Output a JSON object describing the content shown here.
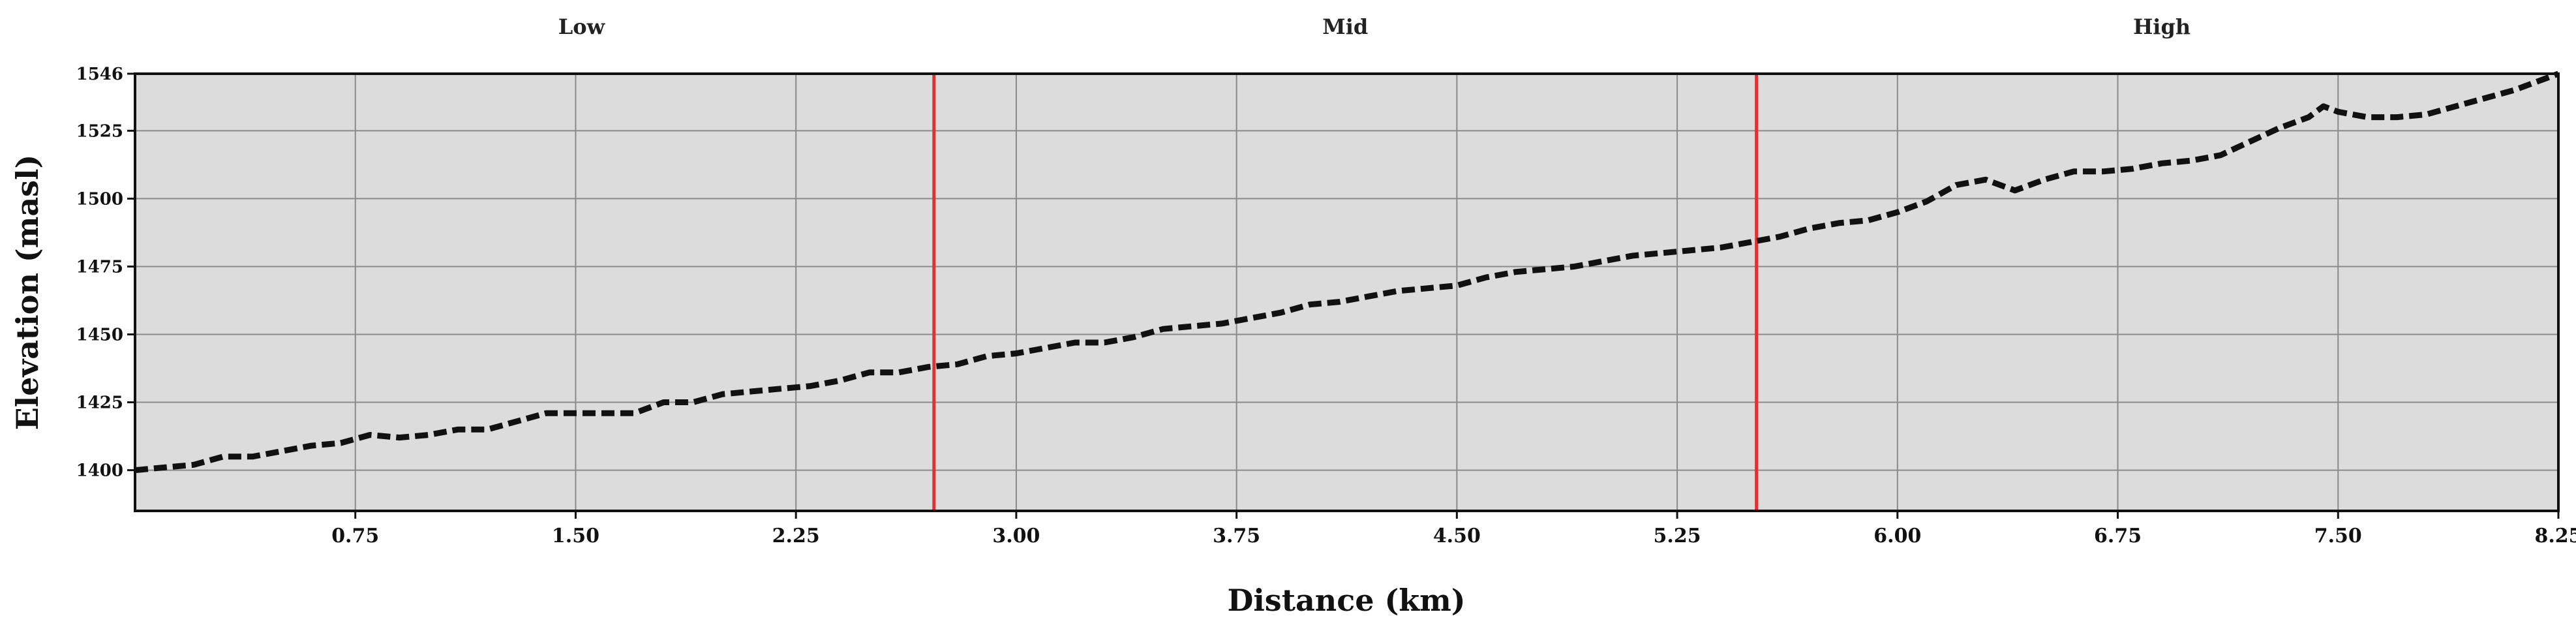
{
  "chart_data": {
    "type": "line",
    "title": "",
    "xlabel": "Distance (km)",
    "ylabel": "Elevation (masl)",
    "xlim": [
      0,
      8.25
    ],
    "ylim": [
      1385,
      1546
    ],
    "x_ticks": [
      "0.75",
      "1.50",
      "2.25",
      "3.00",
      "3.75",
      "4.50",
      "5.25",
      "6.00",
      "6.75",
      "7.50",
      "8.25"
    ],
    "x_tick_values": [
      0.75,
      1.5,
      2.25,
      3.0,
      3.75,
      4.5,
      5.25,
      6.0,
      6.75,
      7.5,
      8.25
    ],
    "y_ticks": [
      "1400",
      "1425",
      "1450",
      "1475",
      "1500",
      "1525",
      "1546"
    ],
    "y_tick_values": [
      1400,
      1425,
      1450,
      1475,
      1500,
      1525,
      1546
    ],
    "grid": true,
    "background_color": "#dcdcdc",
    "line_color": "#111111",
    "line_style": "dashed",
    "divider_color": "#e03030",
    "dividers": [
      2.72,
      5.52
    ],
    "zones": [
      {
        "label": "Low",
        "center": 1.52
      },
      {
        "label": "Mid",
        "center": 4.12
      },
      {
        "label": "High",
        "center": 6.9
      }
    ],
    "series": [
      {
        "x": [
          0,
          0.1,
          0.2,
          0.3,
          0.4,
          0.5,
          0.6,
          0.7,
          0.8,
          0.9,
          1.0,
          1.1,
          1.2,
          1.3,
          1.4,
          1.5,
          1.6,
          1.7,
          1.8,
          1.9,
          2.0,
          2.1,
          2.2,
          2.3,
          2.4,
          2.5,
          2.6,
          2.7,
          2.8,
          2.9,
          3.0,
          3.1,
          3.2,
          3.3,
          3.4,
          3.5,
          3.6,
          3.7,
          3.8,
          3.9,
          4.0,
          4.1,
          4.2,
          4.3,
          4.4,
          4.5,
          4.6,
          4.7,
          4.8,
          4.9,
          5.0,
          5.1,
          5.2,
          5.3,
          5.4,
          5.5,
          5.6,
          5.7,
          5.8,
          5.9,
          6.0,
          6.1,
          6.2,
          6.3,
          6.4,
          6.5,
          6.6,
          6.7,
          6.8,
          6.9,
          7.0,
          7.1,
          7.2,
          7.3,
          7.4,
          7.45,
          7.5,
          7.6,
          7.7,
          7.8,
          7.9,
          8.0,
          8.1,
          8.25
        ],
        "values": [
          1400,
          1401,
          1402,
          1405,
          1405,
          1407,
          1409,
          1410,
          1413,
          1412,
          1413,
          1415,
          1415,
          1418,
          1421,
          1421,
          1421,
          1421,
          1425,
          1425,
          1428,
          1429,
          1430,
          1431,
          1433,
          1436,
          1436,
          1438,
          1439,
          1442,
          1443,
          1445,
          1447,
          1447,
          1449,
          1452,
          1453,
          1454,
          1456,
          1458,
          1461,
          1462,
          1464,
          1466,
          1467,
          1468,
          1471,
          1473,
          1474,
          1475,
          1477,
          1479,
          1480,
          1481,
          1482,
          1484,
          1486,
          1489,
          1491,
          1492,
          1495,
          1499,
          1505,
          1507,
          1503,
          1507,
          1510,
          1510,
          1511,
          1513,
          1514,
          1516,
          1521,
          1526,
          1530,
          1534,
          1532,
          1530,
          1530,
          1531,
          1534,
          1537,
          1540,
          1546
        ]
      }
    ]
  }
}
